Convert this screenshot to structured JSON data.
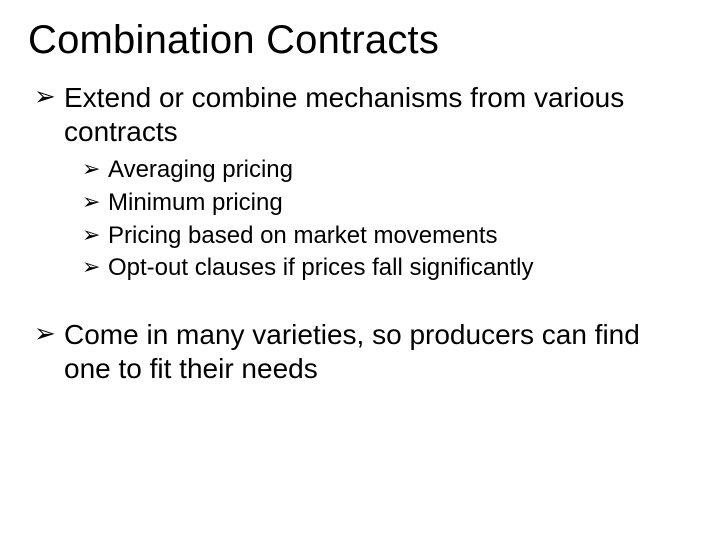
{
  "title": "Combination Contracts",
  "bullets": {
    "b1": "Extend or combine mechanisms from various contracts",
    "sub": {
      "s1": "Averaging pricing",
      "s2": "Minimum pricing",
      "s3": "Pricing based on market movements",
      "s4": "Opt-out clauses if prices fall significantly"
    },
    "b2": "Come in many varieties, so producers can find one to fit their needs"
  },
  "style": {
    "background_color": "#ffffff",
    "text_color": "#000000",
    "title_fontsize": 40,
    "level1_fontsize": 28,
    "level2_fontsize": 24,
    "font_family": "Arial",
    "bullet_glyph": "➢"
  }
}
